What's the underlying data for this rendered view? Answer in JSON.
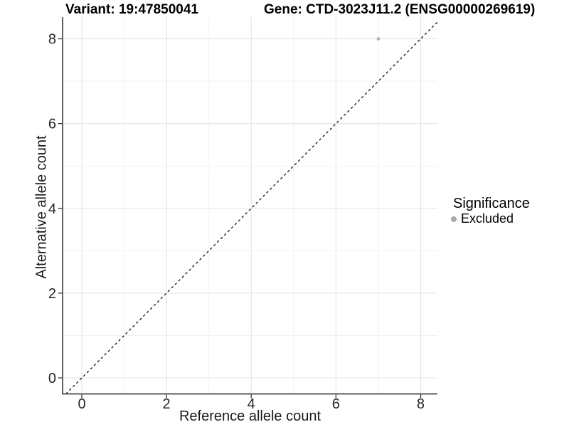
{
  "titles": {
    "variant": "Variant: 19:47850041",
    "gene": "Gene: CTD-3023J11.2 (ENSG00000269619)"
  },
  "legend": {
    "title": "Significance",
    "items": [
      {
        "label": "Excluded",
        "color": "#aaaaaa",
        "marker": "circle"
      }
    ]
  },
  "chart_data": {
    "type": "scatter",
    "title": "Variant: 19:47850041  /  Gene: CTD-3023J11.2 (ENSG00000269619)",
    "xlabel": "Reference allele count",
    "ylabel": "Alternative allele count",
    "x_ticks": [
      0,
      2,
      4,
      6,
      8
    ],
    "y_ticks": [
      0,
      2,
      4,
      6,
      8
    ],
    "xlim": [
      -0.45,
      8.4
    ],
    "ylim": [
      -0.38,
      8.5
    ],
    "grid": "major+minor",
    "legend_position": "right",
    "identity_line": {
      "slope": 1,
      "intercept": 0,
      "style": "dashed",
      "color": "#000000"
    },
    "series": [
      {
        "name": "Excluded",
        "color": "#b4b4b4",
        "points": [
          {
            "x": 7,
            "y": 8
          }
        ]
      }
    ]
  }
}
